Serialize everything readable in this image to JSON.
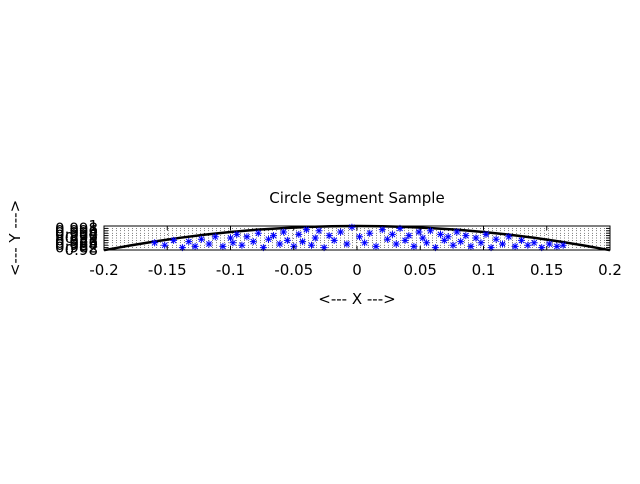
{
  "chart_data": {
    "type": "scatter",
    "title": "Circle Segment Sample",
    "xlabel": "<--- X --->",
    "ylabel": "<--- Y --->",
    "xlim": [
      -0.2,
      0.2
    ],
    "ylim": [
      0.98,
      1.0
    ],
    "grid": true,
    "x_ticks": [
      -0.2,
      -0.15,
      -0.1,
      -0.05,
      0,
      0.05,
      0.1,
      0.15,
      0.2
    ],
    "x_tick_labels": [
      "-0.2",
      "-0.15",
      "-0.1",
      "-0.05",
      "0",
      "0.05",
      "0.1",
      "0.15",
      "0.2"
    ],
    "y_ticks": [
      0.98,
      0.982,
      0.984,
      0.986,
      0.988,
      0.99,
      0.992,
      0.994,
      0.996,
      0.998,
      1.0
    ],
    "y_tick_labels": [
      "0.98",
      "0.982",
      "0.984",
      "0.986",
      "0.988",
      "0.99",
      "0.992",
      "0.994",
      "0.996",
      "0.998",
      "1"
    ],
    "colors": {
      "points": "#0000ff",
      "curve": "#000000",
      "grid": "#000000"
    },
    "series": [
      {
        "kind": "line",
        "x": [
          -0.2,
          -0.18,
          -0.16,
          -0.14,
          -0.12,
          -0.1,
          -0.08,
          -0.06,
          -0.04,
          -0.02,
          0,
          0.02,
          0.04,
          0.06,
          0.08,
          0.1,
          0.12,
          0.14,
          0.16,
          0.18,
          0.2
        ],
        "y": [
          0.9798,
          0.9837,
          0.9871,
          0.9902,
          0.9928,
          0.995,
          0.9968,
          0.9982,
          0.9992,
          0.9998,
          1.0,
          0.9998,
          0.9992,
          0.9982,
          0.9968,
          0.995,
          0.9928,
          0.9902,
          0.9871,
          0.9837,
          0.9798
        ]
      },
      {
        "kind": "points",
        "marker": "*",
        "x": [
          -0.16,
          -0.152,
          -0.145,
          -0.138,
          -0.133,
          -0.128,
          -0.123,
          -0.117,
          -0.112,
          -0.106,
          -0.1,
          -0.098,
          -0.095,
          -0.091,
          -0.087,
          -0.082,
          -0.078,
          -0.074,
          -0.07,
          -0.066,
          -0.061,
          -0.058,
          -0.055,
          -0.05,
          -0.046,
          -0.043,
          -0.04,
          -0.036,
          -0.033,
          -0.03,
          -0.026,
          -0.022,
          -0.018,
          -0.013,
          -0.008,
          -0.004,
          0.002,
          0.006,
          0.01,
          0.015,
          0.02,
          0.024,
          0.028,
          0.031,
          0.034,
          0.038,
          0.041,
          0.045,
          0.049,
          0.052,
          0.055,
          0.058,
          0.062,
          0.066,
          0.069,
          0.072,
          0.076,
          0.079,
          0.082,
          0.086,
          0.09,
          0.094,
          0.098,
          0.102,
          0.106,
          0.11,
          0.115,
          0.12,
          0.125,
          0.13,
          0.135,
          0.14,
          0.146,
          0.152,
          0.158,
          0.163
        ],
        "y": [
          0.986,
          0.984,
          0.988,
          0.982,
          0.987,
          0.983,
          0.989,
          0.985,
          0.991,
          0.983,
          0.99,
          0.986,
          0.993,
          0.984,
          0.991,
          0.987,
          0.994,
          0.982,
          0.989,
          0.992,
          0.985,
          0.995,
          0.988,
          0.983,
          0.993,
          0.987,
          0.997,
          0.984,
          0.99,
          0.996,
          0.982,
          0.992,
          0.988,
          0.995,
          0.985,
          0.999,
          0.991,
          0.986,
          0.994,
          0.983,
          0.997,
          0.989,
          0.993,
          0.985,
          0.998,
          0.988,
          0.992,
          0.983,
          0.995,
          0.99,
          0.986,
          0.996,
          0.982,
          0.993,
          0.988,
          0.991,
          0.984,
          0.995,
          0.987,
          0.992,
          0.983,
          0.99,
          0.986,
          0.993,
          0.982,
          0.989,
          0.985,
          0.991,
          0.983,
          0.988,
          0.984,
          0.986,
          0.982,
          0.985,
          0.983,
          0.984
        ]
      }
    ]
  }
}
